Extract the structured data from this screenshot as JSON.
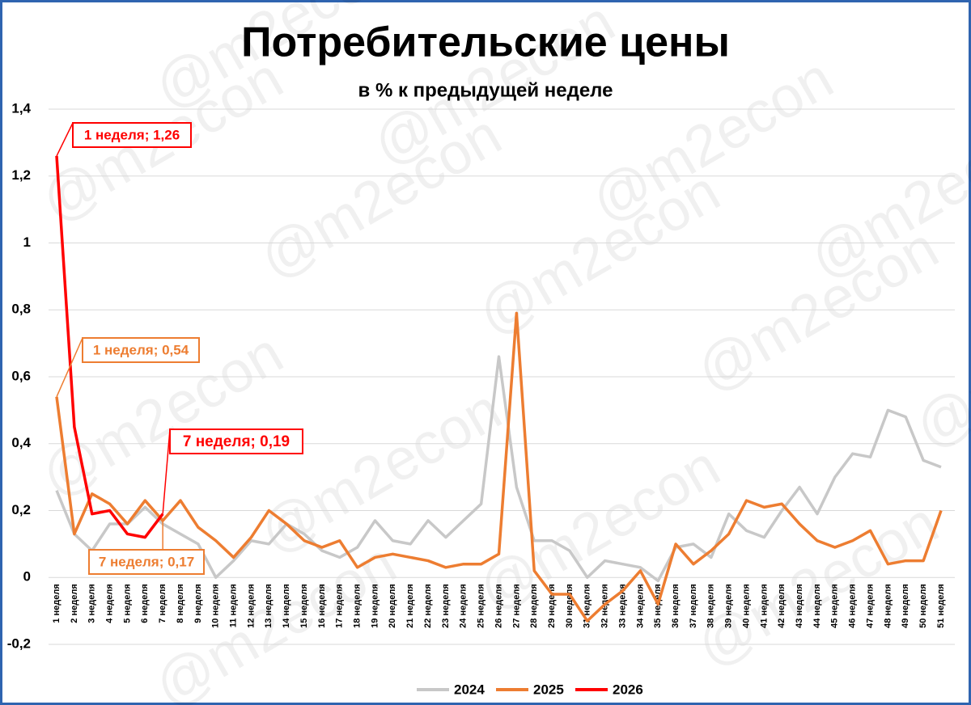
{
  "chart_data": {
    "type": "line",
    "title": "Потребительские цены",
    "subtitle": "в % к предыдущей неделе",
    "watermark": "@m2econ",
    "categories": [
      "1 неделя",
      "2 неделя",
      "3 неделя",
      "4 неделя",
      "5 неделя",
      "6 неделя",
      "7 неделя",
      "8 неделя",
      "9 неделя",
      "10 неделя",
      "11 неделя",
      "12 неделя",
      "13 неделя",
      "14 неделя",
      "15 неделя",
      "16 неделя",
      "17 неделя",
      "18 неделя",
      "19 неделя",
      "20 неделя",
      "21 неделя",
      "22 неделя",
      "23 неделя",
      "24 неделя",
      "25 неделя",
      "26 неделя",
      "27 неделя",
      "28 неделя",
      "29 неделя",
      "30 неделя",
      "31 неделя",
      "32 неделя",
      "33 неделя",
      "34 неделя",
      "35 неделя",
      "36 неделя",
      "37 неделя",
      "38 неделя",
      "39 неделя",
      "40 неделя",
      "41 неделя",
      "42 неделя",
      "43 неделя",
      "44 неделя",
      "45 неделя",
      "46 неделя",
      "47 неделя",
      "48 неделя",
      "49 неделя",
      "50 неделя",
      "51 неделя"
    ],
    "series": [
      {
        "name": "2024",
        "color": "#c8c8c8",
        "values": [
          0.26,
          0.13,
          0.08,
          0.16,
          0.16,
          0.21,
          0.16,
          0.13,
          0.1,
          0.0,
          0.05,
          0.11,
          0.1,
          0.16,
          0.13,
          0.08,
          0.06,
          0.09,
          0.17,
          0.11,
          0.1,
          0.17,
          0.12,
          0.17,
          0.22,
          0.66,
          0.27,
          0.11,
          0.11,
          0.08,
          0.0,
          0.05,
          0.04,
          0.03,
          -0.01,
          0.09,
          0.1,
          0.06,
          0.19,
          0.14,
          0.12,
          0.2,
          0.27,
          0.19,
          0.3,
          0.37,
          0.36,
          0.5,
          0.48,
          0.35,
          0.33
        ]
      },
      {
        "name": "2025",
        "color": "#ed7d31",
        "values": [
          0.54,
          0.13,
          0.25,
          0.22,
          0.16,
          0.23,
          0.17,
          0.23,
          0.15,
          0.11,
          0.06,
          0.12,
          0.2,
          0.16,
          0.11,
          0.09,
          0.11,
          0.03,
          0.06,
          0.07,
          0.06,
          0.05,
          0.03,
          0.04,
          0.04,
          0.07,
          0.79,
          0.02,
          -0.05,
          -0.05,
          -0.13,
          -0.08,
          -0.04,
          0.02,
          -0.08,
          0.1,
          0.04,
          0.08,
          0.13,
          0.23,
          0.21,
          0.22,
          0.16,
          0.11,
          0.09,
          0.11,
          0.14,
          0.04,
          0.05,
          0.05,
          0.2
        ]
      },
      {
        "name": "2026",
        "color": "#ff0000",
        "values": [
          1.26,
          0.45,
          0.19,
          0.2,
          0.13,
          0.12,
          0.19,
          null,
          null,
          null,
          null,
          null,
          null,
          null,
          null,
          null,
          null,
          null,
          null,
          null,
          null,
          null,
          null,
          null,
          null,
          null,
          null,
          null,
          null,
          null,
          null,
          null,
          null,
          null,
          null,
          null,
          null,
          null,
          null,
          null,
          null,
          null,
          null,
          null,
          null,
          null,
          null,
          null,
          null,
          null,
          null
        ]
      }
    ],
    "ylim": [
      -0.2,
      1.4
    ],
    "yticks": [
      {
        "value": -0.2,
        "label": "-0,2"
      },
      0,
      {
        "value": 0.2,
        "label": "0,2"
      },
      {
        "value": 0.4,
        "label": "0,4"
      },
      {
        "value": 0.6,
        "label": "0,6"
      },
      {
        "value": 0.8,
        "label": "0,8"
      },
      1,
      {
        "value": 1.2,
        "label": "1,2"
      },
      {
        "value": 1.4,
        "label": "1,4"
      }
    ],
    "grid": true,
    "legend": "bottom",
    "annotations": [
      "1 неделя; 1,26",
      "1 неделя; 0,54",
      "7 неделя; 0,19",
      "7 неделя; 0,17"
    ]
  }
}
